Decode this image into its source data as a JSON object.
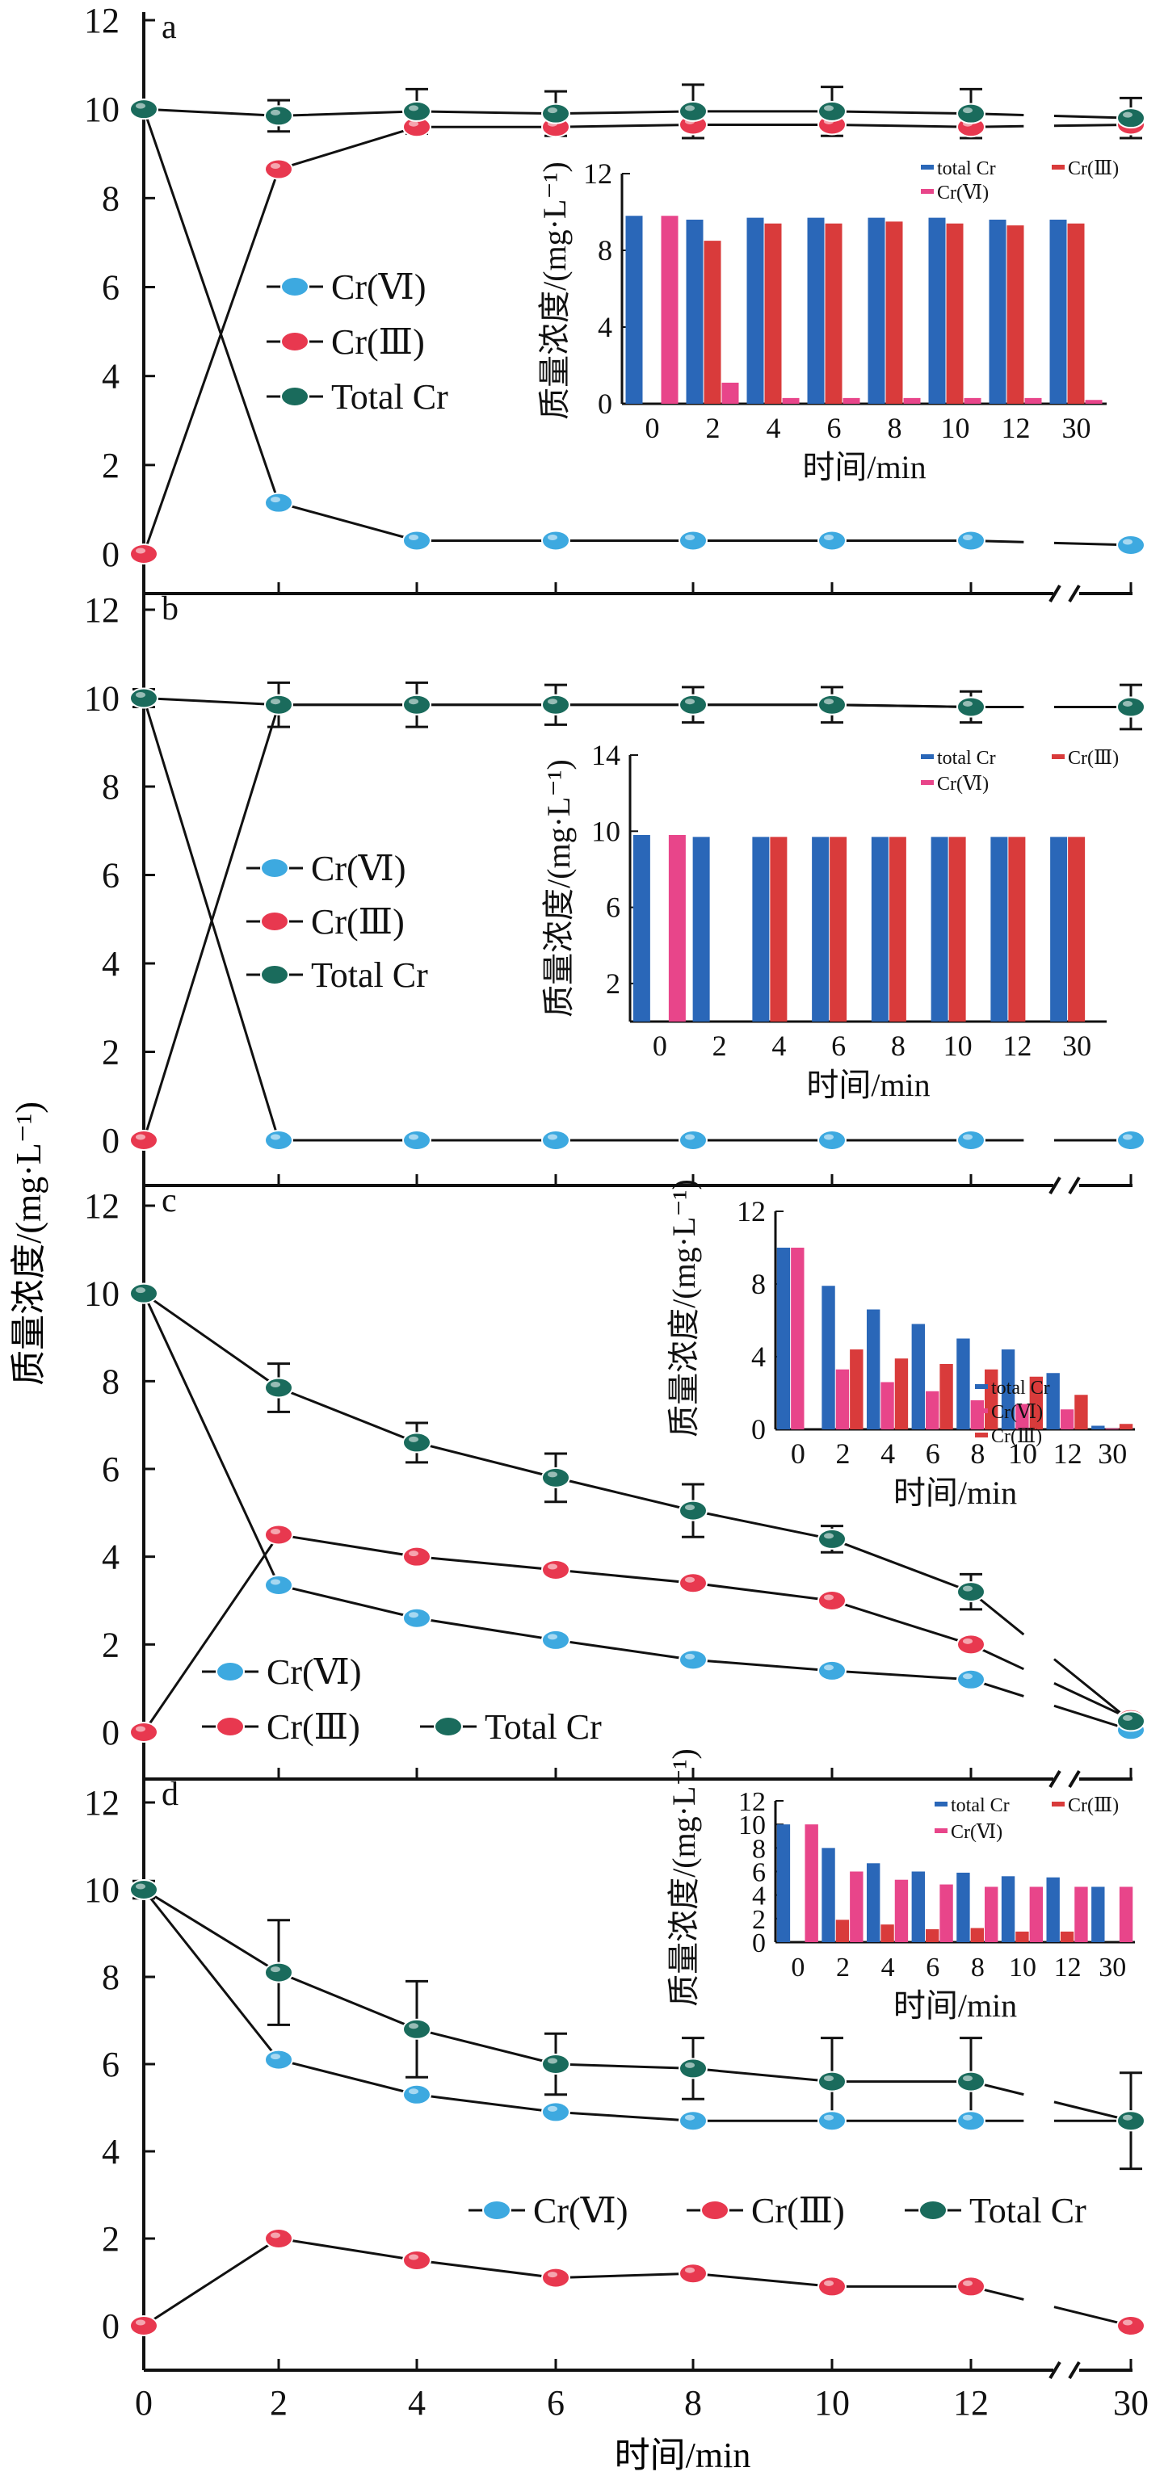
{
  "figure": {
    "ylabel": "质量浓度/(mg·L⁻¹)",
    "xlabel": "时间/min",
    "x_ticks": [
      "0",
      "2",
      "4",
      "6",
      "8",
      "10",
      "12",
      "30"
    ],
    "y_ticks": [
      "0",
      "2",
      "4",
      "6",
      "8",
      "10",
      "12"
    ],
    "colors": {
      "cr6": "#3da9e0",
      "cr3": "#e8384f",
      "total": "#1a6b5c",
      "bar_total": "#2a67b8",
      "bar_cr3": "#d93b3b",
      "bar_cr6": "#e8458a"
    }
  },
  "chart_data": [
    {
      "type": "line",
      "panel": "a",
      "x": [
        0,
        2,
        4,
        6,
        8,
        10,
        12,
        30
      ],
      "series": [
        {
          "name": "Cr(Ⅵ)",
          "values": [
            10,
            1.15,
            0.3,
            0.3,
            0.3,
            0.3,
            0.3,
            0.2
          ]
        },
        {
          "name": "Cr(Ⅲ)",
          "values": [
            0,
            8.65,
            9.6,
            9.6,
            9.65,
            9.65,
            9.6,
            9.65
          ]
        },
        {
          "name": "Total Cr",
          "values": [
            10,
            9.85,
            9.95,
            9.9,
            9.95,
            9.95,
            9.9,
            9.8
          ]
        }
      ],
      "errors": [
        0.1,
        0.35,
        0.5,
        0.5,
        0.6,
        0.55,
        0.55,
        0.45
      ],
      "ylim": [
        0,
        12
      ],
      "inset": {
        "type": "bar",
        "ylabel": "质量浓度/(mg·L⁻¹)",
        "xlabel": "时间/min",
        "y_ticks": [
          "0",
          "4",
          "8",
          "12"
        ],
        "ylim": [
          0,
          12
        ],
        "categories": [
          "0",
          "2",
          "4",
          "6",
          "8",
          "10",
          "12",
          "30"
        ],
        "series": [
          {
            "name": "total Cr",
            "values": [
              9.8,
              9.6,
              9.7,
              9.7,
              9.7,
              9.7,
              9.6,
              9.6
            ]
          },
          {
            "name": "Cr(Ⅲ)",
            "values": [
              0,
              8.5,
              9.4,
              9.4,
              9.5,
              9.4,
              9.3,
              9.4
            ]
          },
          {
            "name": "Cr(Ⅵ)",
            "values": [
              9.8,
              1.1,
              0.3,
              0.3,
              0.3,
              0.3,
              0.3,
              0.2
            ]
          }
        ]
      }
    },
    {
      "type": "line",
      "panel": "b",
      "x": [
        0,
        2,
        4,
        6,
        8,
        10,
        12,
        30
      ],
      "series": [
        {
          "name": "Cr(Ⅵ)",
          "values": [
            10,
            0,
            0,
            0,
            0,
            0,
            0,
            0
          ]
        },
        {
          "name": "Cr(Ⅲ)",
          "values": [
            0,
            9.85,
            9.85,
            9.85,
            9.85,
            9.85,
            9.8,
            9.8
          ]
        },
        {
          "name": "Total Cr",
          "values": [
            10,
            9.85,
            9.85,
            9.85,
            9.85,
            9.85,
            9.8,
            9.8
          ]
        }
      ],
      "errors": [
        0.2,
        0.5,
        0.5,
        0.45,
        0.4,
        0.4,
        0.35,
        0.5
      ],
      "ylim": [
        0,
        12
      ],
      "inset": {
        "type": "bar",
        "ylabel": "质量浓度/(mg·L⁻¹)",
        "xlabel": "时间/min",
        "y_ticks": [
          "2",
          "6",
          "10",
          "14"
        ],
        "ylim": [
          0,
          14
        ],
        "categories": [
          "0",
          "2",
          "4",
          "6",
          "8",
          "10",
          "12",
          "30"
        ],
        "series": [
          {
            "name": "total Cr",
            "values": [
              9.8,
              9.7,
              9.7,
              9.7,
              9.7,
              9.7,
              9.7,
              9.7
            ]
          },
          {
            "name": "Cr(Ⅲ)",
            "values": [
              0,
              0,
              9.7,
              9.7,
              9.7,
              9.7,
              9.7,
              9.7
            ]
          },
          {
            "name": "Cr(Ⅵ)",
            "values": [
              9.8,
              0,
              0,
              0,
              0,
              0,
              0,
              0
            ]
          }
        ]
      }
    },
    {
      "type": "line",
      "panel": "c",
      "x": [
        0,
        2,
        4,
        6,
        8,
        10,
        12,
        30
      ],
      "series": [
        {
          "name": "Cr(Ⅵ)",
          "values": [
            10,
            3.35,
            2.6,
            2.1,
            1.65,
            1.4,
            1.2,
            0.05
          ]
        },
        {
          "name": "Cr(Ⅲ)",
          "values": [
            0,
            4.5,
            4.0,
            3.7,
            3.4,
            3.0,
            2.0,
            0.3
          ]
        },
        {
          "name": "Total Cr",
          "values": [
            10,
            7.85,
            6.6,
            5.8,
            5.05,
            4.4,
            3.2,
            0.25
          ]
        }
      ],
      "errors": [
        0.1,
        0.55,
        0.45,
        0.55,
        0.6,
        0.3,
        0.4,
        0.1
      ],
      "ylim": [
        0,
        12
      ],
      "inset": {
        "type": "bar",
        "ylabel": "质量浓度/(mg·L⁻¹)",
        "xlabel": "时间/min",
        "y_ticks": [
          "0",
          "4",
          "8",
          "12"
        ],
        "ylim": [
          0,
          12
        ],
        "categories": [
          "0",
          "2",
          "4",
          "6",
          "8",
          "10",
          "12",
          "30"
        ],
        "series": [
          {
            "name": "total Cr",
            "values": [
              10,
              7.9,
              6.6,
              5.8,
              5.0,
              4.4,
              3.1,
              0.2
            ]
          },
          {
            "name": "Cr(Ⅵ)",
            "values": [
              10,
              3.3,
              2.6,
              2.1,
              1.6,
              1.4,
              1.1,
              0.05
            ]
          },
          {
            "name": "Cr(Ⅲ)",
            "values": [
              0,
              4.4,
              3.9,
              3.6,
              3.3,
              2.9,
              1.9,
              0.3
            ]
          }
        ]
      }
    },
    {
      "type": "line",
      "panel": "d",
      "x": [
        0,
        2,
        4,
        6,
        8,
        10,
        12,
        30
      ],
      "series": [
        {
          "name": "Cr(Ⅵ)",
          "values": [
            10,
            6.1,
            5.3,
            4.9,
            4.7,
            4.7,
            4.7,
            4.7
          ]
        },
        {
          "name": "Cr(Ⅲ)",
          "values": [
            0,
            2.0,
            1.5,
            1.1,
            1.2,
            0.9,
            0.9,
            0.0
          ]
        },
        {
          "name": "Total Cr",
          "values": [
            10,
            8.1,
            6.8,
            6.0,
            5.9,
            5.6,
            5.6,
            4.7
          ]
        }
      ],
      "errors": [
        0.2,
        1.2,
        1.1,
        0.7,
        0.7,
        1.0,
        1.0,
        1.1
      ],
      "ylim": [
        0,
        12
      ],
      "inset": {
        "type": "bar",
        "ylabel": "质量浓度/(mg·L⁻¹)",
        "xlabel": "时间/min",
        "y_ticks": [
          "0",
          "2",
          "4",
          "6",
          "8",
          "10",
          "12"
        ],
        "ylim": [
          0,
          12
        ],
        "categories": [
          "0",
          "2",
          "4",
          "6",
          "8",
          "10",
          "12",
          "30"
        ],
        "series": [
          {
            "name": "total Cr",
            "values": [
              10,
              8.0,
              6.7,
              6.0,
              5.9,
              5.6,
              5.5,
              4.7
            ]
          },
          {
            "name": "Cr(Ⅲ)",
            "values": [
              0,
              1.9,
              1.5,
              1.1,
              1.2,
              0.9,
              0.9,
              0.0
            ]
          },
          {
            "name": "Cr(Ⅵ)",
            "values": [
              10,
              6.0,
              5.3,
              4.9,
              4.7,
              4.7,
              4.7,
              4.7
            ]
          }
        ]
      }
    }
  ]
}
